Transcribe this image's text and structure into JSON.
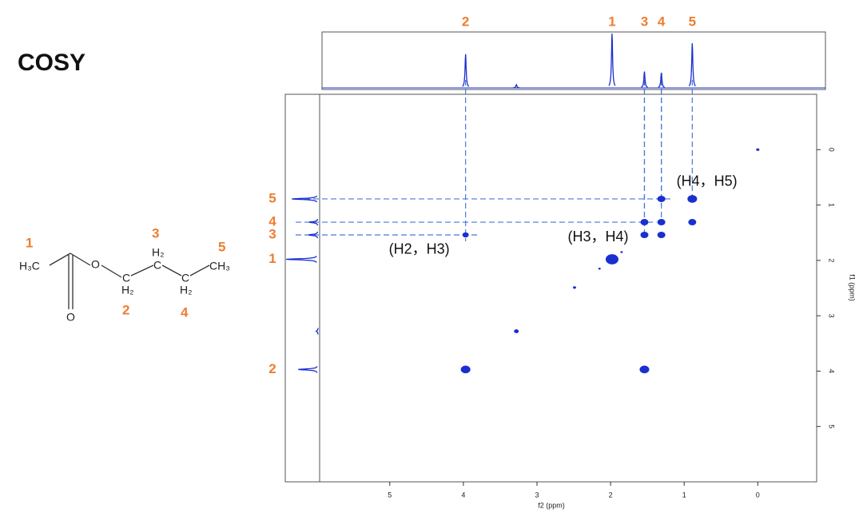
{
  "chart_data": {
    "type": "scatter",
    "title": "COSY",
    "x_label": "f2 (ppm)",
    "y_label": "f1 (ppm)",
    "xlim": [
      6.42,
      -0.8
    ],
    "ylim": [
      -1,
      6
    ],
    "xticks": [
      5,
      4,
      3,
      2,
      1,
      0
    ],
    "yticks": [
      0,
      1,
      2,
      3,
      4,
      5
    ],
    "color": "#1a2fd0",
    "x": [
      3.97,
      3.97,
      1.54,
      1.54,
      1.54,
      1.31,
      1.31,
      1.31,
      0.89,
      0.89,
      1.98,
      3.28,
      2.49,
      0,
      2.15,
      1.85
    ],
    "values": [
      3.97,
      1.54,
      3.97,
      1.54,
      1.31,
      1.54,
      1.31,
      0.89,
      1.31,
      0.89,
      1.98,
      3.28,
      2.49,
      0,
      2.15,
      1.85
    ],
    "sizes": [
      6,
      4,
      6,
      5,
      5,
      5,
      5,
      5,
      5,
      6,
      8,
      3,
      2,
      2,
      1.5,
      1.5
    ],
    "peaks_x": [
      3.97,
      3.28,
      1.98,
      1.54,
      1.31,
      0.89
    ],
    "peaks_height": [
      62,
      6,
      100,
      30,
      28,
      82
    ],
    "peak_labels": [
      "2",
      "1",
      "3",
      "4",
      "5"
    ],
    "peak_label_x": [
      3.97,
      1.98,
      1.54,
      1.31,
      0.89
    ],
    "f1_labels": [
      "5",
      "4",
      "3",
      "1",
      "2"
    ],
    "f1_label_y": [
      0.89,
      1.31,
      1.54,
      1.98,
      3.97
    ],
    "correlations": [
      [
        3.97,
        1.54
      ],
      [
        1.54,
        1.31
      ],
      [
        1.31,
        0.89
      ]
    ],
    "annotations": [
      {
        "text": "(H2，H3)",
        "x": 3.97,
        "y": 1.54
      },
      {
        "text": "(H3，H4)",
        "x": 1.54,
        "y": 1.31
      },
      {
        "text": "(H4，H5)",
        "x": 1.31,
        "y": 0.89
      }
    ]
  },
  "molecule": {
    "atoms": [
      "H₃C",
      "O",
      "O",
      "C",
      "H₂",
      "C",
      "H₂",
      "C",
      "H₂",
      "CH₃"
    ],
    "numbers": [
      "1",
      "2",
      "3",
      "4",
      "5"
    ]
  }
}
